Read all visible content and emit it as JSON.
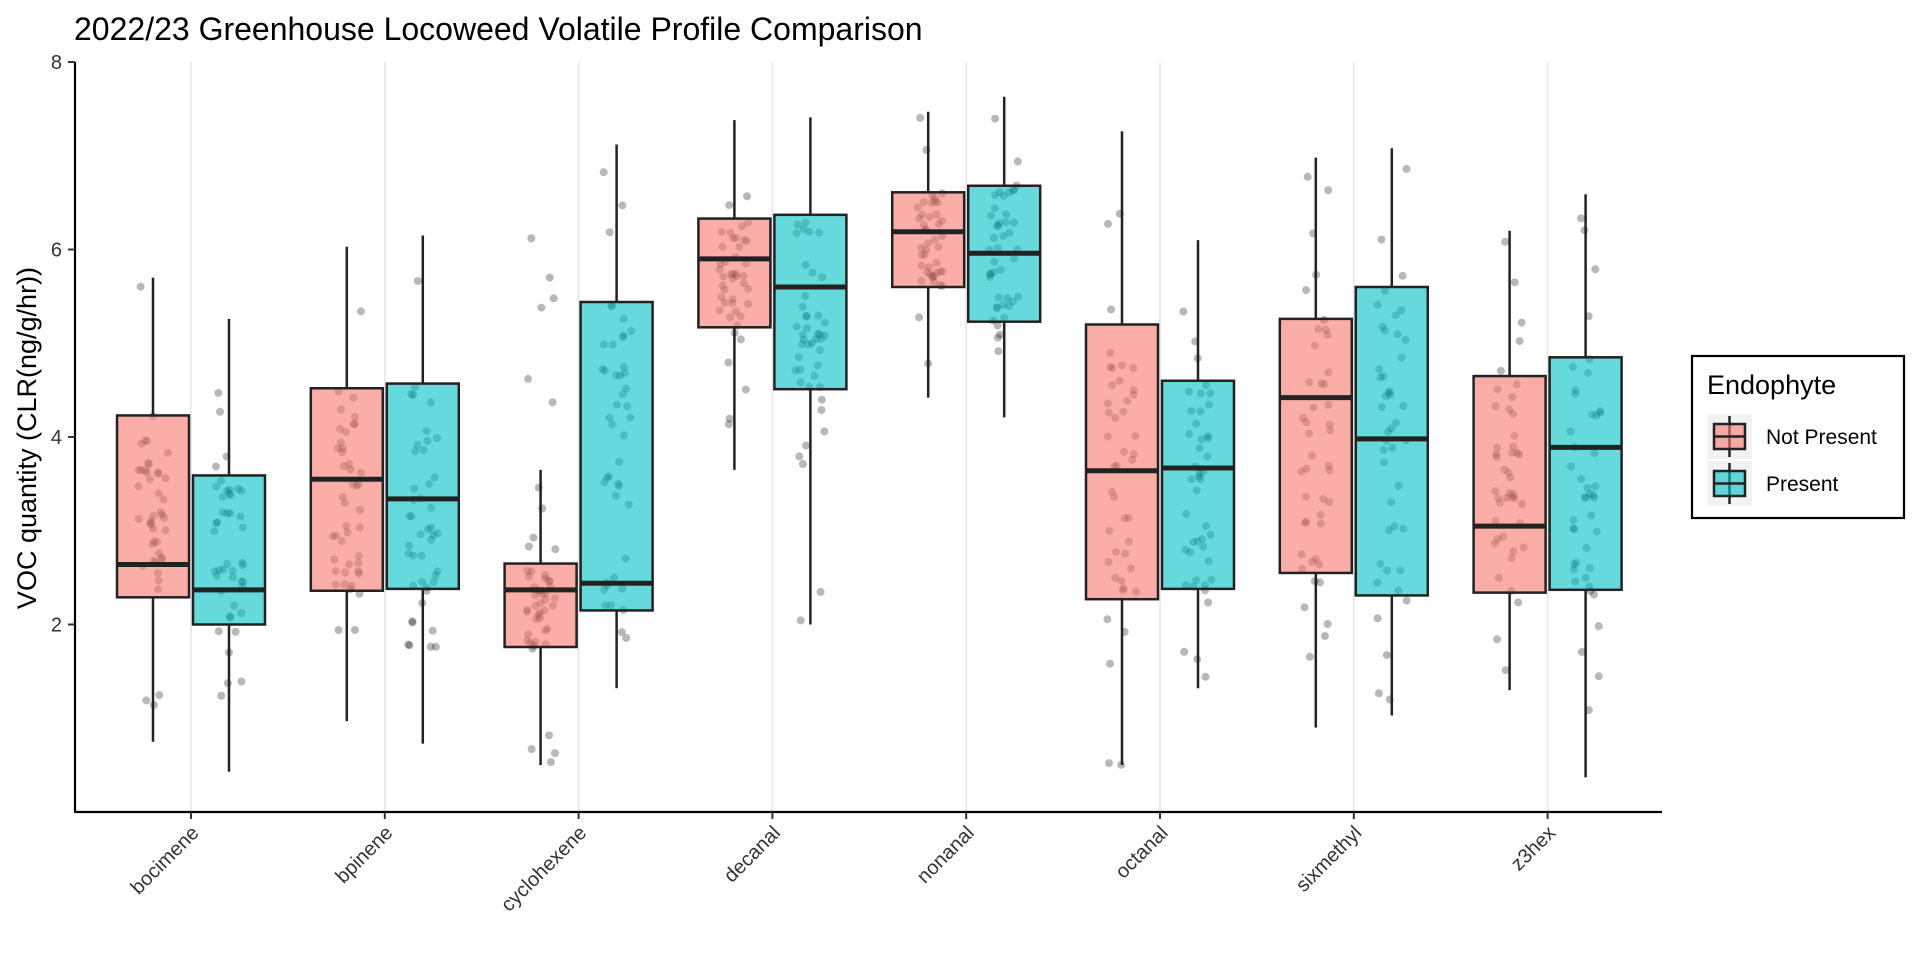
{
  "chart_data": {
    "type": "box",
    "title": "2022/23 Greenhouse Locoweed Volatile Profile Comparison",
    "xlabel": "",
    "ylabel": "VOC quantity (CLR(ng/g/hr))",
    "ylim": [
      0,
      8
    ],
    "yticks": [
      2,
      4,
      6,
      8
    ],
    "grid": "vertical-major",
    "legend": {
      "title": "Endophyte",
      "position": "right"
    },
    "categories": [
      "bocimene",
      "bpinene",
      "cyclohexene",
      "decanal",
      "nonanal",
      "octanal",
      "sixmethyl",
      "z3hex"
    ],
    "series": [
      {
        "name": "Not Present",
        "color": "#F8766D",
        "stats": [
          {
            "min": 0.75,
            "q1": 2.29,
            "median": 2.64,
            "q3": 4.23,
            "max": 5.7
          },
          {
            "min": 0.97,
            "q1": 2.36,
            "median": 3.55,
            "q3": 4.52,
            "max": 6.03
          },
          {
            "min": 0.5,
            "q1": 1.76,
            "median": 2.37,
            "q3": 2.65,
            "max": 3.65
          },
          {
            "min": 3.65,
            "q1": 5.17,
            "median": 5.9,
            "q3": 6.33,
            "max": 7.38
          },
          {
            "min": 4.42,
            "q1": 5.6,
            "median": 6.19,
            "q3": 6.61,
            "max": 7.47
          },
          {
            "min": 0.5,
            "q1": 2.27,
            "median": 3.64,
            "q3": 5.2,
            "max": 7.26
          },
          {
            "min": 0.9,
            "q1": 2.55,
            "median": 4.42,
            "q3": 5.26,
            "max": 6.98
          },
          {
            "min": 1.3,
            "q1": 2.34,
            "median": 3.05,
            "q3": 4.65,
            "max": 6.2
          }
        ],
        "outliers": [
          [],
          [],
          [
            4.37,
            4.62,
            5.38,
            5.48,
            5.7,
            6.12
          ],
          [],
          [],
          [],
          [],
          []
        ]
      },
      {
        "name": "Present",
        "color": "#00BFC4",
        "stats": [
          {
            "min": 0.43,
            "q1": 2.0,
            "median": 2.37,
            "q3": 3.59,
            "max": 5.26
          },
          {
            "min": 0.73,
            "q1": 2.38,
            "median": 3.34,
            "q3": 4.57,
            "max": 6.15
          },
          {
            "min": 1.32,
            "q1": 2.15,
            "median": 2.44,
            "q3": 5.44,
            "max": 7.12
          },
          {
            "min": 2.0,
            "q1": 4.51,
            "median": 5.6,
            "q3": 6.37,
            "max": 7.41
          },
          {
            "min": 4.21,
            "q1": 5.23,
            "median": 5.96,
            "q3": 6.68,
            "max": 7.63
          },
          {
            "min": 1.32,
            "q1": 2.38,
            "median": 3.67,
            "q3": 4.6,
            "max": 6.1
          },
          {
            "min": 1.03,
            "q1": 2.31,
            "median": 3.98,
            "q3": 5.6,
            "max": 7.08
          },
          {
            "min": 0.37,
            "q1": 2.37,
            "median": 3.89,
            "q3": 4.85,
            "max": 6.59
          }
        ],
        "outliers": [
          [],
          [],
          [],
          [],
          [],
          [],
          [],
          []
        ]
      }
    ]
  }
}
